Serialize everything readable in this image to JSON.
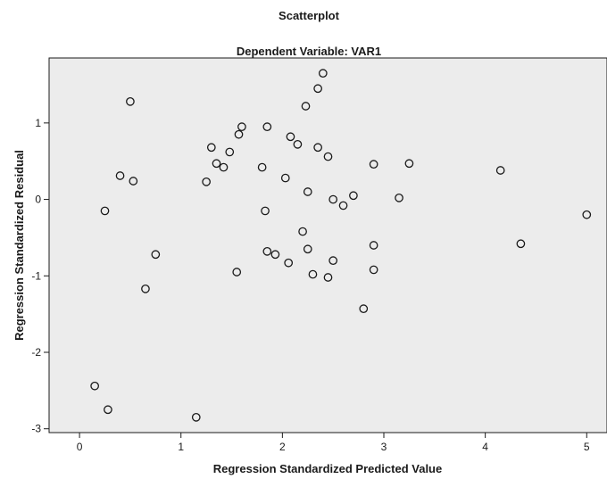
{
  "chart_data": {
    "type": "scatter",
    "title": "Scatterplot",
    "subtitle": "Dependent Variable: VAR1",
    "xlabel": "Regression Standardized Predicted Value",
    "ylabel": "Regression Standardized Residual",
    "xlim": [
      -0.3,
      5.2
    ],
    "ylim": [
      -3.05,
      1.85
    ],
    "xticks": [
      0,
      1,
      2,
      3,
      4,
      5
    ],
    "xtick_labels": [
      "0",
      "1",
      "2",
      "3",
      "4",
      "5"
    ],
    "yticks": [
      -3,
      -2,
      -1,
      0,
      1
    ],
    "ytick_labels": [
      "-3",
      "-2",
      "-1",
      "0",
      "1"
    ],
    "background": "#ececec",
    "grid": false,
    "series": [
      {
        "marker": "circle",
        "points": [
          {
            "x": 0.5,
            "y": 1.28
          },
          {
            "x": 0.15,
            "y": -2.44
          },
          {
            "x": 0.28,
            "y": -2.75
          },
          {
            "x": 0.25,
            "y": -0.15
          },
          {
            "x": 0.4,
            "y": 0.31
          },
          {
            "x": 0.53,
            "y": 0.24
          },
          {
            "x": 0.65,
            "y": -1.17
          },
          {
            "x": 0.75,
            "y": -0.72
          },
          {
            "x": 1.15,
            "y": -2.85
          },
          {
            "x": 1.25,
            "y": 0.23
          },
          {
            "x": 1.3,
            "y": 0.68
          },
          {
            "x": 1.35,
            "y": 0.47
          },
          {
            "x": 1.42,
            "y": 0.42
          },
          {
            "x": 1.48,
            "y": 0.62
          },
          {
            "x": 1.55,
            "y": -0.95
          },
          {
            "x": 1.57,
            "y": 0.85
          },
          {
            "x": 1.6,
            "y": 0.95
          },
          {
            "x": 1.8,
            "y": 0.42
          },
          {
            "x": 1.83,
            "y": -0.15
          },
          {
            "x": 1.85,
            "y": -0.68
          },
          {
            "x": 1.85,
            "y": 0.95
          },
          {
            "x": 1.93,
            "y": -0.72
          },
          {
            "x": 2.03,
            "y": 0.28
          },
          {
            "x": 2.06,
            "y": -0.83
          },
          {
            "x": 2.08,
            "y": 0.82
          },
          {
            "x": 2.15,
            "y": 0.72
          },
          {
            "x": 2.2,
            "y": -0.42
          },
          {
            "x": 2.23,
            "y": 1.22
          },
          {
            "x": 2.25,
            "y": -0.65
          },
          {
            "x": 2.25,
            "y": 0.1
          },
          {
            "x": 2.3,
            "y": -0.98
          },
          {
            "x": 2.35,
            "y": 0.68
          },
          {
            "x": 2.35,
            "y": 1.45
          },
          {
            "x": 2.4,
            "y": 1.65
          },
          {
            "x": 2.45,
            "y": -1.02
          },
          {
            "x": 2.45,
            "y": 0.56
          },
          {
            "x": 2.5,
            "y": -0.8
          },
          {
            "x": 2.5,
            "y": 0.0
          },
          {
            "x": 2.6,
            "y": -0.08
          },
          {
            "x": 2.7,
            "y": 0.05
          },
          {
            "x": 2.8,
            "y": -1.43
          },
          {
            "x": 2.9,
            "y": -0.92
          },
          {
            "x": 2.9,
            "y": -0.6
          },
          {
            "x": 2.9,
            "y": 0.46
          },
          {
            "x": 3.15,
            "y": 0.02
          },
          {
            "x": 3.25,
            "y": 0.47
          },
          {
            "x": 4.15,
            "y": 0.38
          },
          {
            "x": 4.35,
            "y": -0.58
          },
          {
            "x": 5.0,
            "y": -0.2
          }
        ]
      }
    ]
  }
}
